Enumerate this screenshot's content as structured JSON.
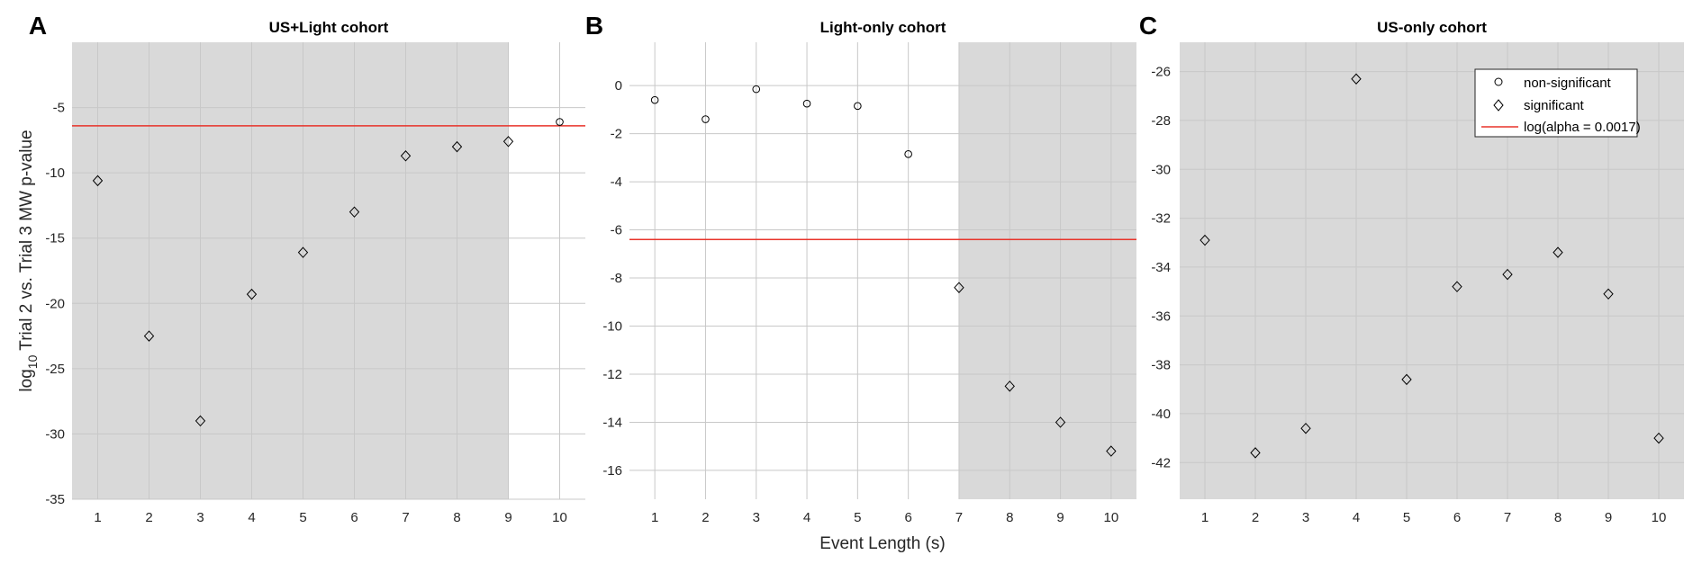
{
  "figure": {
    "ylabel_prefix": "log",
    "ylabel_sub": "10",
    "ylabel_rest": " Trial 2 vs. Trial 3 MW p-value",
    "xlabel": "Event Length (s)"
  },
  "legend": {
    "placement": "top-right of panel C",
    "items": [
      {
        "label": "non-significant",
        "marker": "circle"
      },
      {
        "label": "significant",
        "marker": "diamond"
      },
      {
        "label": "log(alpha = 0.0017)",
        "marker": "line"
      }
    ]
  },
  "colors": {
    "shade": "#d9d9d9",
    "grid": "#c8c8c8",
    "alpha_line": "#e8332a",
    "marker": "#000000"
  },
  "chart_data": [
    {
      "type": "scatter",
      "letter": "A",
      "title": "US+Light cohort",
      "x": [
        1,
        2,
        3,
        4,
        5,
        6,
        7,
        8,
        9,
        10
      ],
      "y": [
        -10.6,
        -22.5,
        -29.0,
        -19.3,
        -16.1,
        -13.0,
        -8.7,
        -8.0,
        -7.6,
        -6.1
      ],
      "significant": [
        true,
        true,
        true,
        true,
        true,
        true,
        true,
        true,
        true,
        false
      ],
      "alpha_line": -6.4,
      "shaded_x": [
        0.5,
        9
      ],
      "xlim": [
        0.5,
        10.5
      ],
      "ylim": [
        -35,
        0
      ],
      "xticks": [
        1,
        2,
        3,
        4,
        5,
        6,
        7,
        8,
        9,
        10
      ],
      "yticks": [
        -35,
        -30,
        -25,
        -20,
        -15,
        -10,
        -5
      ],
      "grid": true
    },
    {
      "type": "scatter",
      "letter": "B",
      "title": "Light-only cohort",
      "x": [
        1,
        2,
        3,
        4,
        5,
        6,
        7,
        8,
        9,
        10
      ],
      "y": [
        -0.6,
        -1.4,
        -0.15,
        -0.75,
        -0.85,
        -2.85,
        -8.4,
        -12.5,
        -14.0,
        -15.2
      ],
      "significant": [
        false,
        false,
        false,
        false,
        false,
        false,
        true,
        true,
        true,
        true
      ],
      "alpha_line": -6.4,
      "shaded_x": [
        7,
        10.5
      ],
      "xlim": [
        0.5,
        10.5
      ],
      "ylim": [
        -17.2,
        1.8
      ],
      "xticks": [
        1,
        2,
        3,
        4,
        5,
        6,
        7,
        8,
        9,
        10
      ],
      "yticks": [
        -16,
        -14,
        -12,
        -10,
        -8,
        -6,
        -4,
        -2,
        0
      ],
      "grid": true
    },
    {
      "type": "scatter",
      "letter": "C",
      "title": "US-only cohort",
      "x": [
        1,
        2,
        3,
        4,
        5,
        6,
        7,
        8,
        9,
        10
      ],
      "y": [
        -32.9,
        -41.6,
        -40.6,
        -26.3,
        -38.6,
        -34.8,
        -34.3,
        -33.4,
        -35.1,
        -41.0
      ],
      "significant": [
        true,
        true,
        true,
        true,
        true,
        true,
        true,
        true,
        true,
        true
      ],
      "alpha_line": null,
      "shaded_x": [
        0.5,
        10.5
      ],
      "xlim": [
        0.5,
        10.5
      ],
      "ylim": [
        -43.5,
        -24.8
      ],
      "xticks": [
        1,
        2,
        3,
        4,
        5,
        6,
        7,
        8,
        9,
        10
      ],
      "yticks": [
        -42,
        -40,
        -38,
        -36,
        -34,
        -32,
        -30,
        -28,
        -26
      ],
      "grid": true
    }
  ]
}
